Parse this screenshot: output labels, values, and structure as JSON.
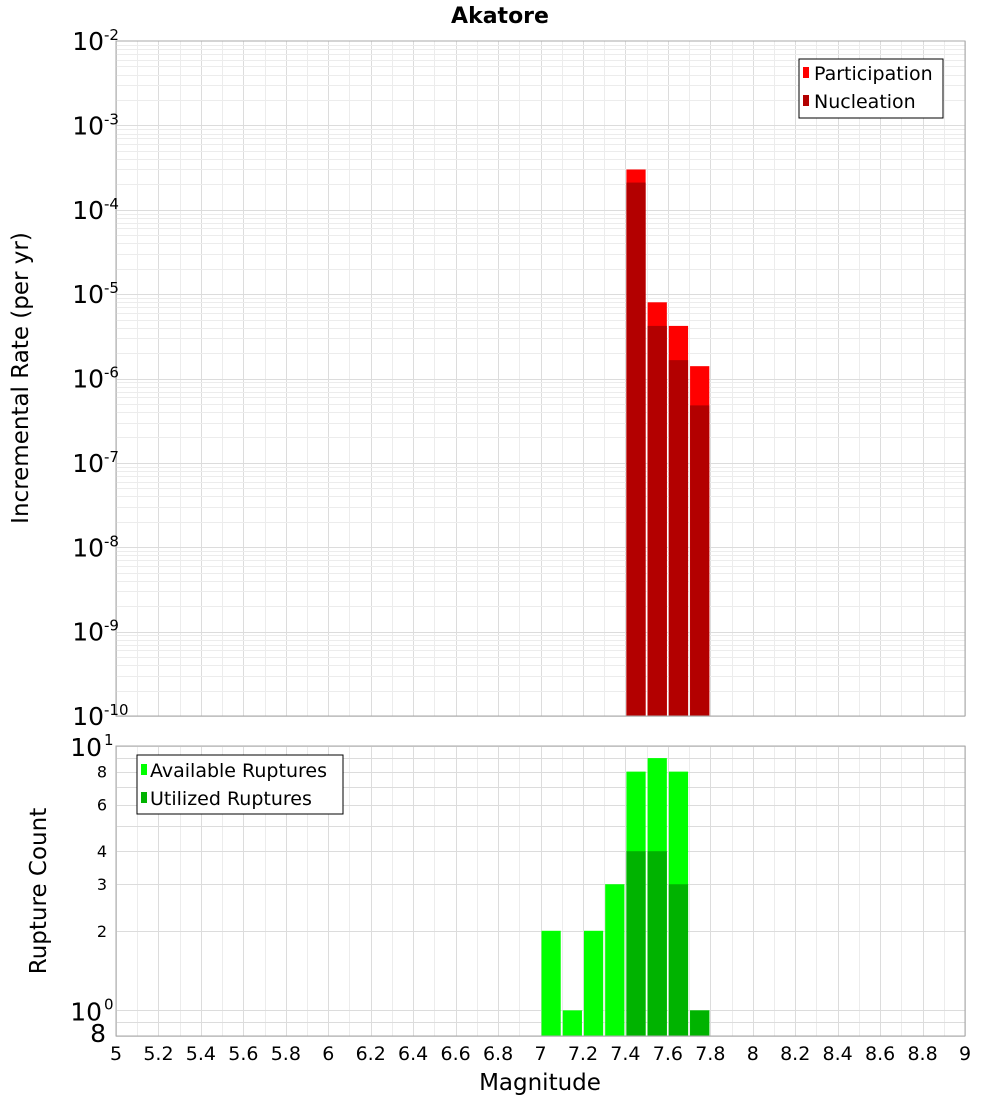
{
  "chart_data": [
    {
      "type": "bar",
      "panel": "top",
      "title": "Akatore",
      "xlabel": "Magnitude",
      "ylabel": "Incremental Rate (per yr)",
      "yscale": "log",
      "ylim": [
        1e-10,
        0.01
      ],
      "xlim": [
        5,
        9
      ],
      "bin_width": 0.1,
      "y_tick_labels": [
        {
          "base": "10",
          "exp": "-2"
        },
        {
          "base": "10",
          "exp": "-3"
        },
        {
          "base": "10",
          "exp": "-4"
        },
        {
          "base": "10",
          "exp": "-5"
        },
        {
          "base": "10",
          "exp": "-6"
        },
        {
          "base": "10",
          "exp": "-7"
        },
        {
          "base": "10",
          "exp": "-8"
        },
        {
          "base": "10",
          "exp": "-9"
        },
        {
          "base": "10",
          "exp": "-10"
        }
      ],
      "legend_position": "top-right",
      "series": [
        {
          "name": "Participation",
          "color": "#ff0000",
          "x": [
            7.45,
            7.55,
            7.65,
            7.75
          ],
          "values": [
            0.0003,
            8e-06,
            4.2e-06,
            1.4e-06
          ]
        },
        {
          "name": "Nucleation",
          "color": "#b30000",
          "x": [
            7.45,
            7.55,
            7.65,
            7.75
          ],
          "values": [
            0.00021,
            4.2e-06,
            1.65e-06,
            4.8e-07
          ]
        }
      ]
    },
    {
      "type": "bar",
      "panel": "bottom",
      "xlabel": "Magnitude",
      "ylabel": "Rupture Count",
      "yscale": "log",
      "ylim": [
        0.8,
        10
      ],
      "xlim": [
        5,
        9
      ],
      "bin_width": 0.1,
      "x_ticks": [
        "5",
        "5.2",
        "5.4",
        "5.6",
        "5.8",
        "6",
        "6.2",
        "6.4",
        "6.6",
        "6.8",
        "7",
        "7.2",
        "7.4",
        "7.6",
        "7.8",
        "8",
        "8.2",
        "8.4",
        "8.6",
        "8.8",
        "9"
      ],
      "y_tick_labels": [
        {
          "value": 10,
          "base": "10",
          "exp": "1"
        },
        {
          "value": 8,
          "label": "8"
        },
        {
          "value": 6,
          "label": "6"
        },
        {
          "value": 4,
          "label": "4"
        },
        {
          "value": 3,
          "label": "3"
        },
        {
          "value": 2,
          "label": "2"
        },
        {
          "value": 1,
          "base": "10",
          "exp": "0"
        },
        {
          "value": 0.8,
          "label": "8"
        }
      ],
      "legend_position": "top-left",
      "series": [
        {
          "name": "Available Ruptures",
          "color": "#00ff00",
          "x": [
            7.05,
            7.15,
            7.25,
            7.35,
            7.45,
            7.55,
            7.65,
            7.75
          ],
          "values": [
            2,
            1,
            2,
            3,
            8,
            9,
            8,
            1
          ]
        },
        {
          "name": "Utilized Ruptures",
          "color": "#00b300",
          "x": [
            7.45,
            7.55,
            7.65,
            7.75
          ],
          "values": [
            4,
            4,
            3,
            1
          ]
        }
      ]
    }
  ]
}
